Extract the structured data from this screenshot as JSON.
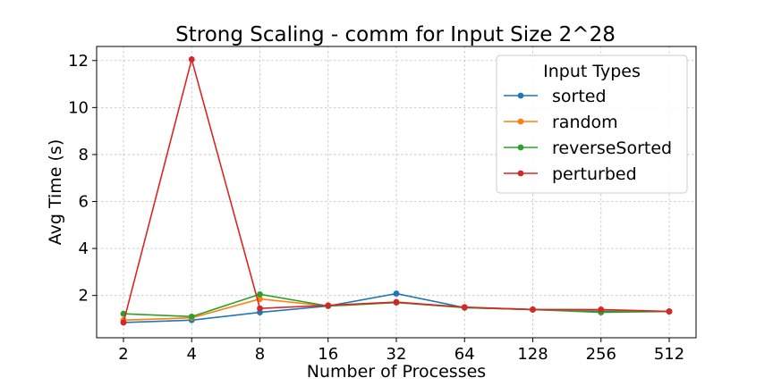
{
  "chart_data": {
    "type": "line",
    "title": "Strong Scaling - comm for Input Size 2^28",
    "xlabel": "Number of Processes",
    "ylabel": "Avg Time (s)",
    "x_ticks": [
      "2",
      "4",
      "8",
      "16",
      "32",
      "64",
      "128",
      "256",
      "512"
    ],
    "y_ticks": [
      2,
      4,
      6,
      8,
      10,
      12
    ],
    "ylim": [
      0.2,
      12.6
    ],
    "grid": true,
    "legend": {
      "title": "Input Types",
      "position": "top-right"
    },
    "series": [
      {
        "name": "sorted",
        "color": "#1f77b4",
        "values": [
          0.85,
          0.95,
          1.28,
          1.55,
          2.08,
          1.48,
          1.4,
          1.32,
          1.32
        ]
      },
      {
        "name": "random",
        "color": "#ff7f0e",
        "values": [
          0.95,
          1.05,
          1.85,
          1.55,
          1.7,
          1.5,
          1.4,
          1.38,
          1.32
        ]
      },
      {
        "name": "reverseSorted",
        "color": "#2ca02c",
        "values": [
          1.22,
          1.1,
          2.05,
          1.55,
          1.7,
          1.48,
          1.4,
          1.28,
          1.32
        ]
      },
      {
        "name": "perturbed",
        "color": "#d62728",
        "values": [
          0.85,
          12.05,
          1.45,
          1.58,
          1.72,
          1.5,
          1.4,
          1.4,
          1.32
        ]
      }
    ]
  }
}
